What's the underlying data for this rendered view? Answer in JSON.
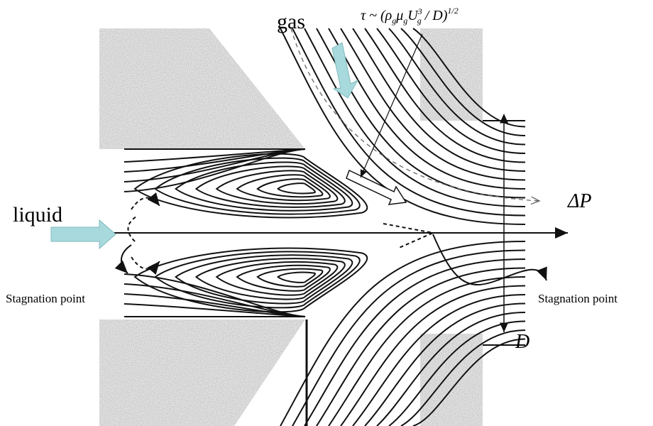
{
  "labels": {
    "gas": "gas",
    "liquid": "liquid",
    "delta_p": "ΔP",
    "d": "D",
    "stagnation_left": "Stagnation point",
    "stagnation_right": "Stagnation point",
    "shear_formula": [
      "τ ~ (ρ",
      "g",
      "μ",
      "g",
      "U",
      "3",
      "g",
      " / D)",
      "1/2"
    ]
  }
}
